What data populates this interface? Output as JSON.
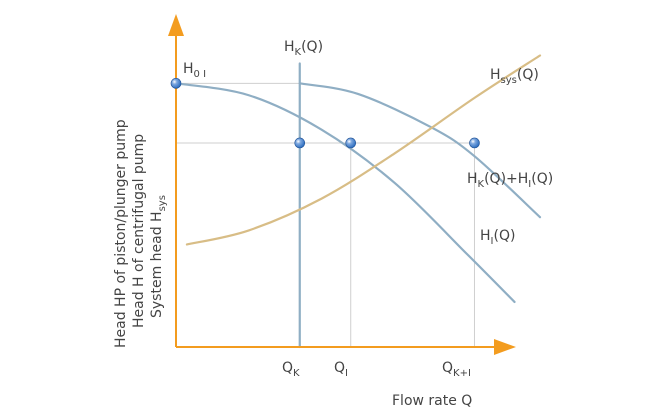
{
  "colors": {
    "axis": "#f39c1f",
    "pump": "#8faec4",
    "system": "#d8bd86",
    "guide": "#cfcfcf",
    "point": "#2f6fc0",
    "text": "#444444"
  },
  "chart_data": {
    "type": "line",
    "xlabel": "Flow rate Q",
    "ylabel_lines": [
      {
        "main": "Head HP of piston/plunger pump",
        "sub": ""
      },
      {
        "main": "Head H of centrifugal pump",
        "sub": ""
      },
      {
        "main": "System head H",
        "sub": "sys"
      }
    ],
    "xlim": [
      0,
      1
    ],
    "ylim": [
      0,
      1
    ],
    "grid": false,
    "x_ticks": [
      {
        "key": "qk",
        "main": "Q",
        "sub": "K",
        "x": 0.34
      },
      {
        "key": "qi",
        "main": "Q",
        "sub": "I",
        "x": 0.48
      },
      {
        "key": "qki",
        "main": "Q",
        "sub": "K+I",
        "x": 0.82
      }
    ],
    "series": [
      {
        "key": "hi",
        "label_main": "H",
        "label_sub": "I",
        "label_tail": "(Q)",
        "color_key": "pump",
        "x": [
          0.0,
          0.2,
          0.4,
          0.6,
          0.8,
          0.93
        ],
        "y": [
          0.995,
          0.95,
          0.82,
          0.62,
          0.35,
          0.17
        ]
      },
      {
        "key": "hki",
        "label_main": "H",
        "label_sub": "K",
        "label_tail": "(Q)+H",
        "label_sub2": "I",
        "label_tail2": "(Q)",
        "color_key": "pump",
        "x": [
          0.34,
          0.5,
          0.7,
          0.82,
          1.0
        ],
        "y": [
          0.995,
          0.955,
          0.83,
          0.72,
          0.49
        ]
      },
      {
        "key": "hk",
        "label_main": "H",
        "label_sub": "K",
        "label_tail": "(Q)",
        "color_key": "pump",
        "x": [
          0.34,
          0.34
        ],
        "y": [
          0.0,
          1.07
        ]
      },
      {
        "key": "hsys",
        "label_main": "H",
        "label_sub": "sys",
        "label_tail": "(Q)",
        "color_key": "system",
        "x": [
          0.03,
          0.2,
          0.4,
          0.6,
          0.82,
          1.0
        ],
        "y": [
          0.387,
          0.44,
          0.56,
          0.73,
          0.94,
          1.1
        ]
      }
    ],
    "annotations": [
      {
        "key": "h0",
        "main": "H",
        "sub": "0 I"
      }
    ],
    "points": [
      {
        "key": "p-h0",
        "x": 0.0,
        "y": 0.995
      },
      {
        "key": "p-qk",
        "x": 0.34,
        "y": 0.77
      },
      {
        "key": "p-qi",
        "x": 0.48,
        "y": 0.77
      },
      {
        "key": "p-qki",
        "x": 0.82,
        "y": 0.77
      }
    ],
    "guides": [
      {
        "key": "guide-h0",
        "from": [
          0.0,
          0.995
        ],
        "to": [
          0.34,
          0.995
        ]
      },
      {
        "key": "guide-mid",
        "from": [
          0.0,
          0.77
        ],
        "to": [
          0.82,
          0.77
        ]
      },
      {
        "key": "guide-qi",
        "from": [
          0.48,
          0.77
        ],
        "to": [
          0.48,
          0.0
        ]
      },
      {
        "key": "guide-qki",
        "from": [
          0.82,
          0.77
        ],
        "to": [
          0.82,
          0.0
        ]
      }
    ]
  }
}
